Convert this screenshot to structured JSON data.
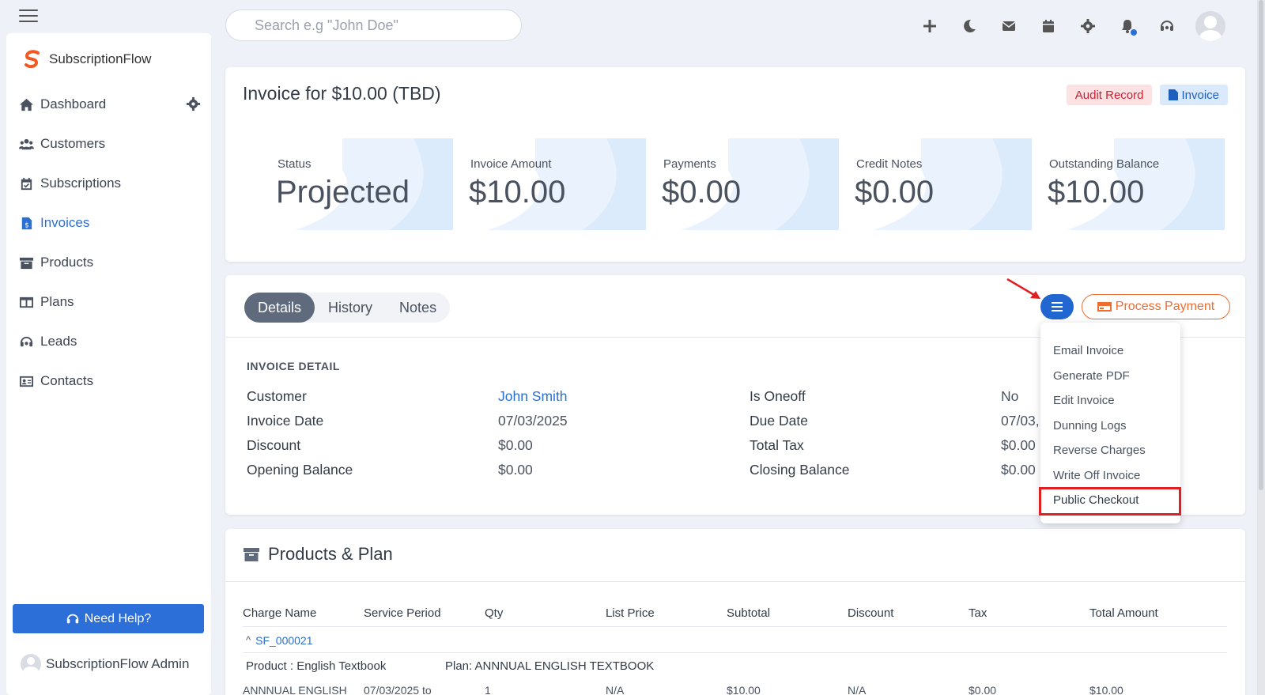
{
  "topbar": {
    "search_placeholder": "Search e.g \"John Doe\"",
    "icons": [
      "plus-icon",
      "moon-icon",
      "envelope-icon",
      "calendar-icon",
      "gear-icon",
      "bell-icon",
      "headset-icon",
      "avatar"
    ]
  },
  "sidebar": {
    "brand": "SubscriptionFlow",
    "items": [
      {
        "label": "Dashboard",
        "icon": "home-icon"
      },
      {
        "label": "Customers",
        "icon": "users-icon"
      },
      {
        "label": "Subscriptions",
        "icon": "calendar-check-icon"
      },
      {
        "label": "Invoices",
        "icon": "invoice-icon",
        "active": true
      },
      {
        "label": "Products",
        "icon": "archive-icon"
      },
      {
        "label": "Plans",
        "icon": "columns-icon"
      },
      {
        "label": "Leads",
        "icon": "headset-icon"
      },
      {
        "label": "Contacts",
        "icon": "contact-card-icon"
      }
    ],
    "help_label": "Need Help?",
    "admin_name": "SubscriptionFlow Admin"
  },
  "invoice": {
    "title": "Invoice for $10.00 (TBD)",
    "badge_audit": "Audit Record",
    "badge_invoice": "Invoice",
    "stats": [
      {
        "label": "Status",
        "value": "Projected"
      },
      {
        "label": "Invoice Amount",
        "value": "$10.00"
      },
      {
        "label": "Payments",
        "value": "$0.00"
      },
      {
        "label": "Credit Notes",
        "value": "$0.00"
      },
      {
        "label": "Outstanding Balance",
        "value": "$10.00"
      }
    ]
  },
  "details": {
    "tabs": [
      "Details",
      "History",
      "Notes"
    ],
    "process_payment_label": "Process Payment",
    "section_title": "INVOICE DETAIL",
    "rows": [
      {
        "k1": "Customer",
        "v1": "John Smith",
        "k2": "Is Oneoff",
        "v2": "No"
      },
      {
        "k1": "Invoice Date",
        "v1": "07/03/2025",
        "k2": "Due Date",
        "v2": "07/03,"
      },
      {
        "k1": "Discount",
        "v1": "$0.00",
        "k2": "Total Tax",
        "v2": "$0.00"
      },
      {
        "k1": "Opening Balance",
        "v1": "$0.00",
        "k2": "Closing Balance",
        "v2": "$0.00"
      }
    ],
    "menu_items": [
      "Email Invoice",
      "Generate PDF",
      "Edit Invoice",
      "Dunning Logs",
      "Reverse Charges",
      "Write Off Invoice",
      "Public Checkout"
    ]
  },
  "products": {
    "title": "Products & Plan",
    "columns": [
      "Charge Name",
      "Service Period",
      "Qty",
      "List Price",
      "Subtotal",
      "Discount",
      "Tax",
      "Total Amount"
    ],
    "subscription_id": "SF_000021",
    "product_label": "Product : English Textbook",
    "plan_label": "Plan: ANNNUAL ENGLISH TEXTBOOK",
    "row": [
      "ANNNUAL ENGLISH",
      "07/03/2025 to",
      "1",
      "N/A",
      "$10.00",
      "N/A",
      "$0.00",
      "$10.00"
    ]
  },
  "colors": {
    "primary": "#2d6fd8",
    "accent_orange": "#ee6d2f",
    "audit_red": "#c82333",
    "highlight_red": "#e02020"
  }
}
